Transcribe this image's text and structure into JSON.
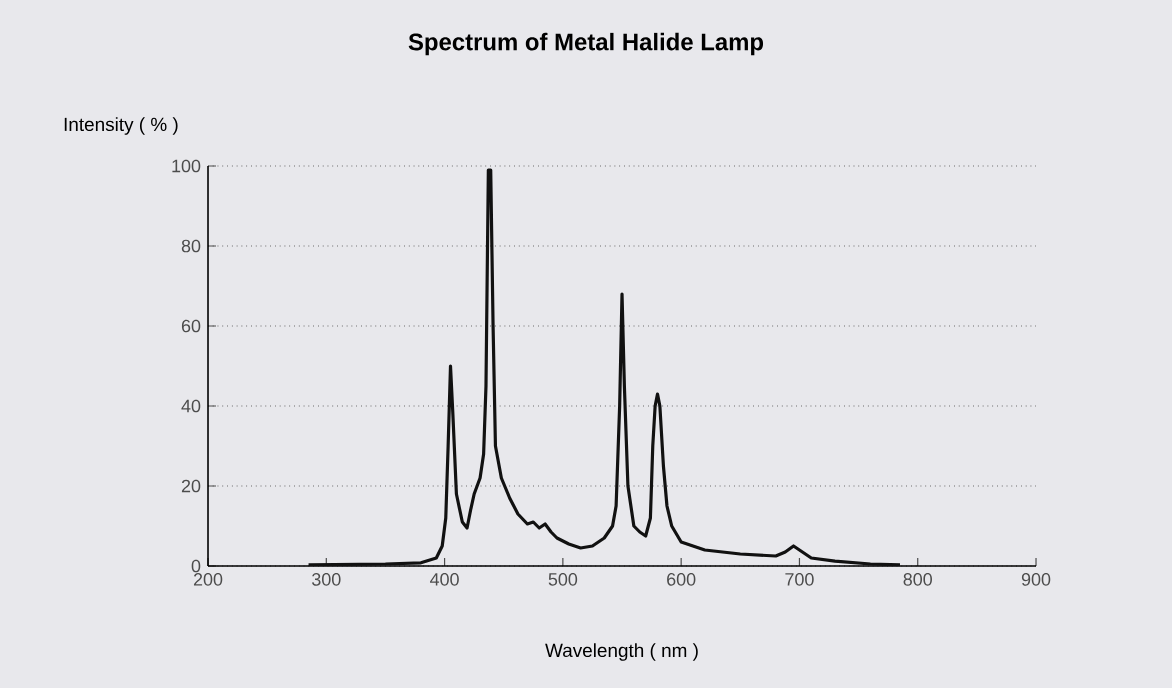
{
  "chart_data": {
    "type": "line",
    "title": "Spectrum of Metal Halide Lamp",
    "xlabel": "Wavelength ( nm )",
    "ylabel": "Intensity ( % )",
    "x": [
      285,
      350,
      380,
      393,
      398,
      401,
      403,
      405,
      407,
      410,
      415,
      419,
      422,
      425,
      430,
      433,
      435,
      437,
      439,
      441,
      443,
      448,
      455,
      462,
      470,
      475,
      480,
      485,
      490,
      495,
      505,
      515,
      525,
      535,
      542,
      545,
      548,
      550,
      552,
      555,
      560,
      565,
      570,
      574,
      576,
      578,
      580,
      582,
      585,
      588,
      592,
      600,
      620,
      650,
      680,
      688,
      695,
      700,
      710,
      730,
      760,
      785
    ],
    "series": [
      {
        "color": "#111111",
        "values": [
          0.3,
          0.5,
          0.8,
          2,
          5,
          12,
          30,
          50,
          38,
          18,
          11,
          9.5,
          14,
          18,
          22,
          28,
          45,
          99,
          99,
          60,
          30,
          22,
          17,
          13,
          10.5,
          11,
          9.5,
          10.5,
          8.5,
          7,
          5.5,
          4.5,
          5,
          7,
          10,
          15,
          40,
          68,
          45,
          20,
          10,
          8.5,
          7.5,
          12,
          30,
          40,
          43,
          40,
          25,
          15,
          10,
          6,
          4,
          3,
          2.5,
          3.5,
          5,
          4,
          2,
          1.2,
          0.5,
          0.3
        ]
      }
    ],
    "xlim": [
      200,
      900
    ],
    "ylim": [
      0,
      100
    ],
    "xticks": [
      200,
      300,
      400,
      500,
      600,
      700,
      800,
      900
    ],
    "yticks": [
      0,
      20,
      40,
      60,
      80,
      100
    ],
    "grid": "y",
    "marker": "none",
    "line_style": "solid"
  }
}
